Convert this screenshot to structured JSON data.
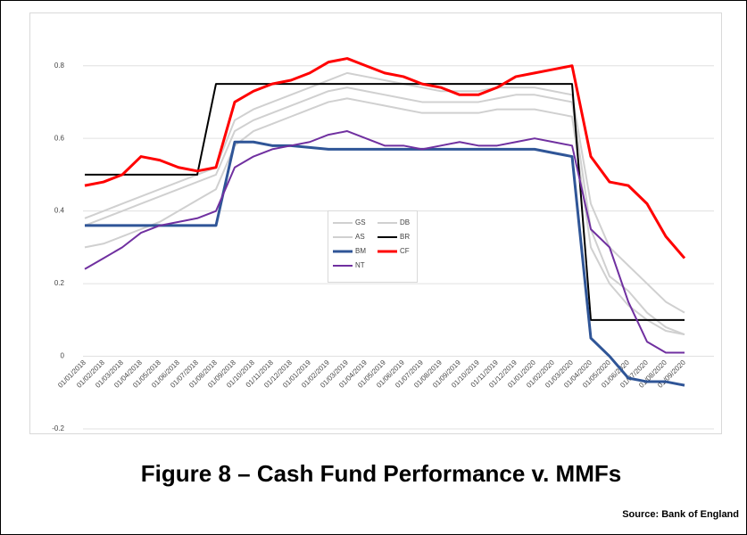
{
  "chart_data": {
    "type": "line",
    "title": "Figure 8 – Cash Fund Performance v. MMFs",
    "source": "Source: Bank of England",
    "categories": [
      "01/01/2018",
      "01/02/2018",
      "01/03/2018",
      "01/04/2018",
      "01/05/2018",
      "01/06/2018",
      "01/07/2018",
      "01/08/2018",
      "01/09/2018",
      "01/10/2018",
      "01/11/2018",
      "01/12/2018",
      "01/01/2019",
      "01/02/2019",
      "01/03/2019",
      "01/04/2019",
      "01/05/2019",
      "01/06/2019",
      "01/07/2019",
      "01/08/2019",
      "01/09/2019",
      "01/10/2019",
      "01/11/2019",
      "01/12/2019",
      "01/01/2020",
      "01/02/2020",
      "01/03/2020",
      "01/04/2020",
      "01/05/2020",
      "01/06/2020",
      "01/07/2020",
      "01/08/2020",
      "01/09/2020"
    ],
    "ylim": [
      -0.2,
      0.9
    ],
    "yticks": [
      -0.2,
      0,
      0.2,
      0.4,
      0.6,
      0.8
    ],
    "grid": true,
    "legend": "center",
    "series": [
      {
        "name": "GS",
        "color": "#d0d0d0",
        "width": 2,
        "values": [
          0.38,
          0.4,
          0.42,
          0.44,
          0.46,
          0.48,
          0.5,
          0.52,
          0.65,
          0.68,
          0.7,
          0.72,
          0.74,
          0.76,
          0.78,
          0.77,
          0.76,
          0.75,
          0.74,
          0.73,
          0.73,
          0.73,
          0.74,
          0.74,
          0.74,
          0.73,
          0.72,
          0.42,
          0.3,
          0.25,
          0.2,
          0.15,
          0.12
        ]
      },
      {
        "name": "DB",
        "color": "#d0d0d0",
        "width": 2,
        "values": [
          0.36,
          0.38,
          0.4,
          0.42,
          0.44,
          0.46,
          0.48,
          0.5,
          0.62,
          0.65,
          0.67,
          0.69,
          0.71,
          0.73,
          0.74,
          0.73,
          0.72,
          0.71,
          0.7,
          0.7,
          0.7,
          0.7,
          0.71,
          0.72,
          0.72,
          0.71,
          0.7,
          0.35,
          0.22,
          0.18,
          0.12,
          0.08,
          0.06
        ]
      },
      {
        "name": "AS",
        "color": "#d0d0d0",
        "width": 2,
        "values": [
          0.3,
          0.31,
          0.33,
          0.35,
          0.37,
          0.4,
          0.43,
          0.46,
          0.58,
          0.62,
          0.64,
          0.66,
          0.68,
          0.7,
          0.71,
          0.7,
          0.69,
          0.68,
          0.67,
          0.67,
          0.67,
          0.67,
          0.68,
          0.68,
          0.68,
          0.67,
          0.66,
          0.3,
          0.2,
          0.14,
          0.1,
          0.07,
          0.06
        ]
      },
      {
        "name": "BR",
        "color": "#000000",
        "width": 2,
        "values": [
          0.5,
          0.5,
          0.5,
          0.5,
          0.5,
          0.5,
          0.5,
          0.75,
          0.75,
          0.75,
          0.75,
          0.75,
          0.75,
          0.75,
          0.75,
          0.75,
          0.75,
          0.75,
          0.75,
          0.75,
          0.75,
          0.75,
          0.75,
          0.75,
          0.75,
          0.75,
          0.75,
          0.1,
          0.1,
          0.1,
          0.1,
          0.1,
          0.1
        ]
      },
      {
        "name": "BM",
        "color": "#2f5597",
        "width": 3,
        "values": [
          0.36,
          0.36,
          0.36,
          0.36,
          0.36,
          0.36,
          0.36,
          0.36,
          0.59,
          0.59,
          0.58,
          0.58,
          0.575,
          0.57,
          0.57,
          0.57,
          0.57,
          0.57,
          0.57,
          0.57,
          0.57,
          0.57,
          0.57,
          0.57,
          0.57,
          0.56,
          0.55,
          0.05,
          0.0,
          -0.06,
          -0.07,
          -0.07,
          -0.08
        ]
      },
      {
        "name": "CF",
        "color": "#ff0000",
        "width": 3,
        "values": [
          0.47,
          0.48,
          0.5,
          0.55,
          0.54,
          0.52,
          0.51,
          0.52,
          0.7,
          0.73,
          0.75,
          0.76,
          0.78,
          0.81,
          0.82,
          0.8,
          0.78,
          0.77,
          0.75,
          0.74,
          0.72,
          0.72,
          0.74,
          0.77,
          0.78,
          0.79,
          0.8,
          0.55,
          0.48,
          0.47,
          0.42,
          0.33,
          0.27
        ]
      },
      {
        "name": "NT",
        "color": "#7030a0",
        "width": 2,
        "values": [
          0.24,
          0.27,
          0.3,
          0.34,
          0.36,
          0.37,
          0.38,
          0.4,
          0.52,
          0.55,
          0.57,
          0.58,
          0.59,
          0.61,
          0.62,
          0.6,
          0.58,
          0.58,
          0.57,
          0.58,
          0.59,
          0.58,
          0.58,
          0.59,
          0.6,
          0.59,
          0.58,
          0.35,
          0.3,
          0.15,
          0.04,
          0.01,
          0.01
        ]
      }
    ]
  }
}
